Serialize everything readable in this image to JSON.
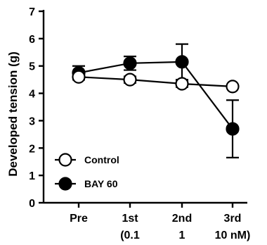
{
  "chart_data": {
    "type": "line",
    "ylabel": "Developed tension (g)",
    "xlabel": "",
    "ylim": [
      0,
      7
    ],
    "yticks": [
      0,
      1,
      2,
      3,
      4,
      5,
      6,
      7
    ],
    "categories": [
      {
        "line1": "Pre",
        "line2": ""
      },
      {
        "line1": "1st",
        "line2": "(0.1"
      },
      {
        "line1": "2nd",
        "line2": "1"
      },
      {
        "line1": "3rd",
        "line2": "10 nM)"
      }
    ],
    "series": [
      {
        "name": "Control",
        "marker": "open-circle",
        "color": "#000000",
        "values": [
          4.6,
          4.5,
          4.35,
          4.25
        ],
        "errors": [
          0.1,
          0.12,
          0.12,
          0.05
        ]
      },
      {
        "name": "BAY 60",
        "marker": "filled-circle",
        "color": "#000000",
        "values": [
          4.75,
          5.1,
          5.15,
          2.7
        ],
        "errors": [
          0.25,
          0.25,
          0.65,
          1.05
        ]
      }
    ],
    "legend_position": "bottom-left",
    "grid": false
  }
}
